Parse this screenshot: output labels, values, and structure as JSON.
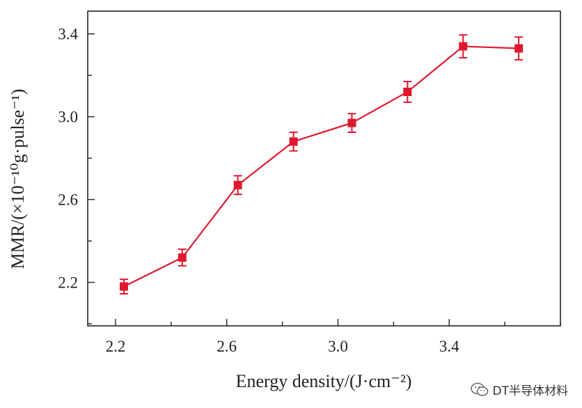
{
  "chart_data": {
    "type": "line",
    "xlabel": "Energy density/(J·cm⁻²)",
    "ylabel": "MMR/(×10⁻¹⁰g·pulse⁻¹)",
    "xlim": [
      2.1,
      3.8
    ],
    "ylim": [
      1.99,
      3.51
    ],
    "xticks": [
      "2.2",
      "2.6",
      "3.0",
      "3.4"
    ],
    "yticks": [
      "2.2",
      "2.6",
      "3.0",
      "3.4"
    ],
    "xtick_values": [
      2.2,
      2.6,
      3.0,
      3.4
    ],
    "ytick_values": [
      2.2,
      2.6,
      3.0,
      3.4
    ],
    "grid": false,
    "series": [
      {
        "x": [
          2.23,
          2.44,
          2.64,
          2.84,
          3.05,
          3.25,
          3.45,
          3.65
        ],
        "y": [
          2.18,
          2.32,
          2.67,
          2.88,
          2.97,
          3.12,
          3.34,
          3.33
        ],
        "error": [
          0.035,
          0.04,
          0.045,
          0.045,
          0.045,
          0.05,
          0.055,
          0.055
        ],
        "color": "#e0182d",
        "marker": "square"
      }
    ]
  },
  "watermark": {
    "text": "DT半导体材料",
    "icon": "wechat-icon"
  }
}
